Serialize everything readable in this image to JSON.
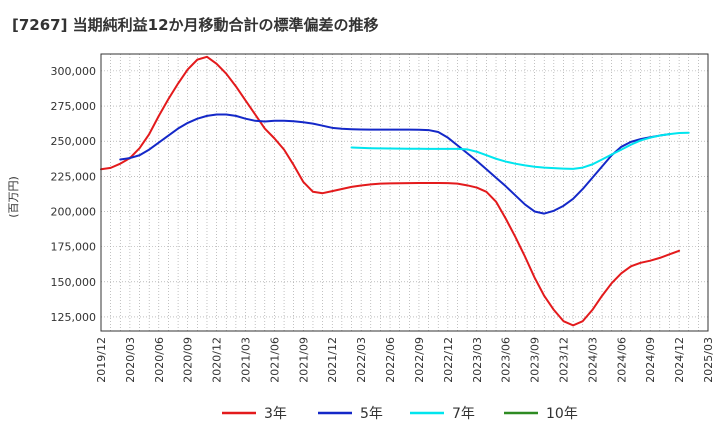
{
  "chart_data": {
    "type": "line",
    "title": "[7267]  当期純利益12か月移動合計の標準偏差の推移",
    "ylabel": "(百万円)",
    "xlabel": "",
    "ylim": [
      115000,
      312000
    ],
    "yticks": [
      125000,
      150000,
      175000,
      200000,
      225000,
      250000,
      275000,
      300000
    ],
    "yticklabels": [
      "125,000",
      "150,000",
      "175,000",
      "200,000",
      "225,000",
      "250,000",
      "275,000",
      "300,000"
    ],
    "xlim": [
      "2019-12",
      "2025-03"
    ],
    "xticklabels": [
      "2019/12",
      "2020/03",
      "2020/06",
      "2020/09",
      "2020/12",
      "2021/03",
      "2021/06",
      "2021/09",
      "2021/12",
      "2022/03",
      "2022/06",
      "2022/09",
      "2022/12",
      "2023/03",
      "2023/06",
      "2023/09",
      "2023/12",
      "2024/03",
      "2024/06",
      "2024/09",
      "2024/12",
      "2025/03"
    ],
    "grid": true,
    "legend_position": "bottom",
    "series": [
      {
        "name": "3年",
        "color": "#e31a1c",
        "start": "2019-12",
        "values": [
          230000,
          231000,
          234000,
          238000,
          245000,
          255000,
          268000,
          280000,
          291000,
          301000,
          308000,
          310000,
          305000,
          298000,
          289000,
          279000,
          269000,
          259000,
          252000,
          244000,
          233000,
          221000,
          214000,
          213000,
          214500,
          216000,
          217500,
          218500,
          219300,
          219800,
          220000,
          220100,
          220200,
          220300,
          220300,
          220300,
          220200,
          219800,
          218600,
          217000,
          214000,
          207000,
          195000,
          182000,
          168000,
          153000,
          140000,
          130000,
          122000,
          119000,
          122000,
          130000,
          140000,
          149000,
          156000,
          161000,
          163500,
          165000,
          167000,
          169500,
          172000
        ]
      },
      {
        "name": "5年",
        "color": "#1428c8",
        "start": "2020-02",
        "values": [
          237000,
          238000,
          240000,
          244000,
          249000,
          254000,
          259000,
          263000,
          266000,
          268000,
          269000,
          269000,
          268000,
          266000,
          264500,
          264000,
          264500,
          264500,
          264200,
          263500,
          262500,
          261000,
          259500,
          258800,
          258500,
          258300,
          258200,
          258200,
          258200,
          258200,
          258200,
          258100,
          257900,
          256500,
          252500,
          247000,
          241500,
          236000,
          230000,
          224000,
          218000,
          211500,
          205000,
          200000,
          198500,
          200500,
          204000,
          209000,
          216000,
          224000,
          232000,
          240000,
          246000,
          249500,
          251500,
          252800,
          254000,
          255000
        ]
      },
      {
        "name": "7年",
        "color": "#00e5ee",
        "start": "2022-02",
        "values": [
          245500,
          245200,
          245000,
          244900,
          244800,
          244700,
          244600,
          244600,
          244500,
          244500,
          244500,
          244500,
          244200,
          242500,
          240000,
          237500,
          235500,
          234000,
          232800,
          231800,
          231200,
          230800,
          230500,
          230300,
          231200,
          233500,
          237000,
          240500,
          244000,
          247500,
          250500,
          252500,
          254000,
          255000,
          255800,
          256000
        ]
      },
      {
        "name": "10年",
        "color": "#2e8b22",
        "start": "2024-12",
        "values": []
      }
    ]
  }
}
